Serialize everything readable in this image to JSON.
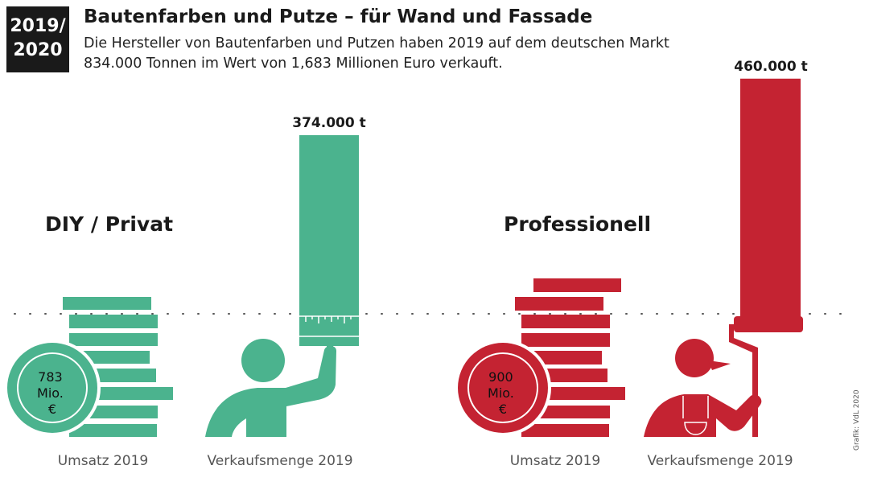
{
  "header": {
    "badge_line1": "2019/",
    "badge_line2": "2020",
    "title": "Bautenfarben und Putze – für Wand und Fassade",
    "subtitle_line1": "Die Hersteller von Bautenfarben und Putzen haben 2019 auf dem deutschen Markt",
    "subtitle_line2": "834.000 Tonnen im Wert von 1,683 Millionen Euro verkauft."
  },
  "credit": "Grafik: VdL 2020",
  "colors": {
    "diy": "#4bb38e",
    "professional": "#c42332"
  },
  "chart_data": {
    "type": "bar",
    "groups": [
      {
        "name": "DIY / Privat",
        "revenue_label": [
          "783",
          "Mio.",
          "€"
        ],
        "revenue_mio_eur": 783,
        "volume_t": 374000,
        "volume_label": "374.000 t",
        "revenue_caption": "Umsatz 2019",
        "volume_caption": "Verkaufsmenge 2019",
        "icons": [
          "coin-stack-icon",
          "painter-brush-icon"
        ]
      },
      {
        "name": "Professionell",
        "revenue_label": [
          "900",
          "Mio.",
          "€"
        ],
        "revenue_mio_eur": 900,
        "volume_t": 460000,
        "volume_label": "460.000 t",
        "revenue_caption": "Umsatz 2019",
        "volume_caption": "Verkaufsmenge 2019",
        "icons": [
          "coin-stack-icon",
          "painter-roller-icon"
        ]
      }
    ]
  }
}
